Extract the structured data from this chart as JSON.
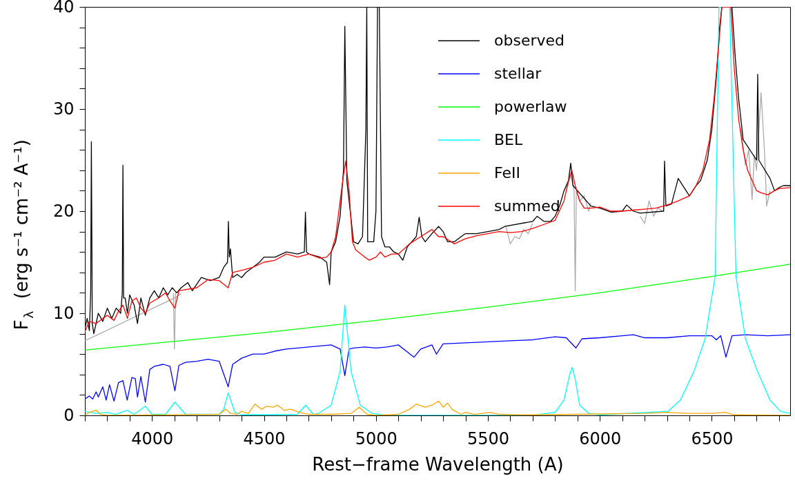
{
  "chart_data": {
    "type": "line",
    "xlabel": "Rest−frame Wavelength (A)",
    "ylabel": "F$_{λ}$ (erg s⁻¹ cm⁻² A⁻¹)",
    "xlim": [
      3700,
      6850
    ],
    "ylim": [
      0,
      40
    ],
    "xticks": [
      {
        "value": 3700,
        "label": null
      },
      {
        "value": 3800,
        "label": null
      },
      {
        "value": 3900,
        "label": null
      },
      4000,
      {
        "value": 4100,
        "label": null
      },
      {
        "value": 4200,
        "label": null
      },
      {
        "value": 4300,
        "label": null
      },
      {
        "value": 4400,
        "label": null
      },
      4500,
      {
        "value": 4600,
        "label": null
      },
      {
        "value": 4700,
        "label": null
      },
      {
        "value": 4800,
        "label": null
      },
      {
        "value": 4900,
        "label": null
      },
      5000,
      {
        "value": 5100,
        "label": null
      },
      {
        "value": 5200,
        "label": null
      },
      {
        "value": 5300,
        "label": null
      },
      {
        "value": 5400,
        "label": null
      },
      5500,
      {
        "value": 5600,
        "label": null
      },
      {
        "value": 5700,
        "label": null
      },
      {
        "value": 5800,
        "label": null
      },
      {
        "value": 5900,
        "label": null
      },
      6000,
      {
        "value": 6100,
        "label": null
      },
      {
        "value": 6200,
        "label": null
      },
      {
        "value": 6300,
        "label": null
      },
      {
        "value": 6400,
        "label": null
      },
      6500,
      {
        "value": 6600,
        "label": null
      },
      {
        "value": 6700,
        "label": null
      },
      {
        "value": 6800,
        "label": null
      }
    ],
    "yticks": [
      0,
      {
        "value": 2,
        "label": null
      },
      {
        "value": 4,
        "label": null
      },
      {
        "value": 6,
        "label": null
      },
      {
        "value": 8,
        "label": null
      },
      10,
      {
        "value": 12,
        "label": null
      },
      {
        "value": 14,
        "label": null
      },
      {
        "value": 16,
        "label": null
      },
      {
        "value": 18,
        "label": null
      },
      20,
      {
        "value": 22,
        "label": null
      },
      {
        "value": 24,
        "label": null
      },
      {
        "value": 26,
        "label": null
      },
      {
        "value": 28,
        "label": null
      },
      30,
      {
        "value": 32,
        "label": null
      },
      {
        "value": 34,
        "label": null
      },
      {
        "value": 36,
        "label": null
      },
      {
        "value": 38,
        "label": null
      },
      40
    ],
    "grid": false,
    "legend": "top",
    "line_style": "solid",
    "marker": "none",
    "series": [
      {
        "color": "#aaaaaa",
        "x": [
          3700,
          4100,
          4130
        ],
        "values": [
          7.3,
          11.5,
          11.9
        ]
      },
      {
        "color": "#aaaaaa",
        "x": [
          4095,
          4100,
          4105
        ],
        "values": [
          12.0,
          6.5,
          12.0
        ]
      },
      {
        "color": "#aaaaaa",
        "x": [
          5580,
          5600,
          5620,
          5640,
          5660,
          5680,
          5700
        ],
        "values": [
          18.5,
          16.8,
          17.5,
          17.3,
          18.2,
          17.8,
          18.8
        ]
      },
      {
        "color": "#aaaaaa",
        "x": [
          5850,
          5870,
          5885,
          5890,
          5895,
          5910,
          5930,
          5950,
          5960
        ],
        "values": [
          22.0,
          23.5,
          22.0,
          12.2,
          22.0,
          21.0,
          21.5,
          20.0,
          20.8
        ]
      },
      {
        "color": "#aaaaaa",
        "x": [
          6180,
          6200,
          6220,
          6240,
          6260,
          6280
        ],
        "values": [
          19.5,
          18.8,
          21.0,
          19.5,
          20.3,
          20.0
        ]
      },
      {
        "color": "#aaaaaa",
        "x": [
          6630,
          6650,
          6665,
          6680,
          6690,
          6700,
          6720,
          6735,
          6745,
          6760
        ],
        "values": [
          28.0,
          24.5,
          26.0,
          21.1,
          25.5,
          24.0,
          31.6,
          26.0,
          20.5,
          22.0
        ]
      },
      {
        "name": "observed",
        "color": "#000000",
        "x": [
          3700,
          3710,
          3720,
          3726,
          3729,
          3733,
          3740,
          3760,
          3780,
          3800,
          3820,
          3840,
          3860,
          3867,
          3870,
          3873,
          3880,
          3890,
          3900,
          3920,
          3935,
          3950,
          3970,
          3990,
          4010,
          4030,
          4050,
          4070,
          4090,
          4110,
          4130,
          4160,
          4180,
          4220,
          4260,
          4300,
          4320,
          4337,
          4341,
          4345,
          4350,
          4360,
          4380,
          4400,
          4420,
          4450,
          4480,
          4500,
          4550,
          4600,
          4650,
          4680,
          4685,
          4690,
          4700,
          4750,
          4780,
          4793,
          4800,
          4820,
          4840,
          4855,
          4861,
          4870,
          4880,
          4900,
          4920,
          4940,
          4955,
          4959,
          4963,
          4990,
          5000,
          5007,
          5015,
          5025,
          5040,
          5060,
          5080,
          5100,
          5120,
          5140,
          5160,
          5180,
          5193,
          5205,
          5220,
          5250,
          5280,
          5300,
          5320,
          5350,
          5380,
          5400,
          5450,
          5500,
          5550,
          5575,
          5700,
          5720,
          5750,
          5780,
          5800,
          5820,
          5840,
          5860,
          5870,
          5880,
          5960,
          6000,
          6050,
          6100,
          6120,
          6150,
          6180,
          6285,
          6289,
          6295,
          6320,
          6350,
          6400,
          6430,
          6450,
          6480,
          6500,
          6520,
          6535,
          6545,
          6590,
          6605,
          6620,
          6640,
          6700,
          6705,
          6710,
          6760,
          6780,
          6800,
          6820,
          6850
        ],
        "values": [
          8.5,
          9.5,
          8.3,
          12.0,
          26.8,
          9.0,
          8.0,
          10.0,
          9.2,
          10.5,
          9.5,
          10.5,
          10.0,
          12.0,
          24.5,
          11.5,
          11.5,
          10.0,
          11.8,
          10.8,
          9.0,
          11.5,
          9.8,
          11.5,
          12.2,
          11.5,
          12.5,
          11.8,
          12.5,
          12.0,
          12.5,
          13.0,
          12.2,
          13.5,
          13.2,
          13.5,
          14.5,
          15.0,
          19.0,
          15.5,
          16.3,
          13.5,
          13.8,
          13.5,
          14.0,
          14.5,
          15.0,
          15.5,
          15.5,
          16.0,
          15.8,
          16.0,
          19.9,
          16.0,
          15.8,
          15.5,
          15.0,
          12.8,
          16.0,
          17.0,
          19.5,
          24.0,
          38.1,
          23.0,
          21.0,
          17.0,
          16.8,
          17.5,
          28.0,
          40.0,
          17.0,
          17.0,
          20.0,
          40.0,
          40.0,
          17.5,
          16.5,
          16.5,
          16.0,
          15.8,
          15.2,
          16.5,
          17.0,
          17.5,
          19.4,
          17.5,
          17.0,
          17.8,
          18.5,
          18.0,
          17.0,
          17.0,
          17.5,
          17.8,
          17.8,
          18.0,
          18.2,
          18.5,
          19.0,
          19.5,
          19.0,
          19.0,
          19.5,
          20.5,
          22.0,
          23.0,
          24.7,
          22.5,
          20.5,
          20.3,
          19.9,
          20.0,
          20.6,
          20.0,
          19.8,
          20.0,
          24.9,
          20.5,
          20.7,
          23.2,
          21.5,
          22.5,
          23.0,
          25.0,
          28.0,
          33.0,
          38.0,
          40.0,
          40.0,
          35.0,
          31.0,
          27.0,
          25.0,
          33.4,
          25.0,
          23.2,
          22.0,
          22.3,
          22.5,
          22.5
        ]
      },
      {
        "name": "stellar",
        "color": "#0000ff",
        "x": [
          3700,
          3720,
          3735,
          3750,
          3760,
          3780,
          3795,
          3810,
          3830,
          3850,
          3870,
          3889,
          3910,
          3925,
          3935,
          3950,
          3970,
          3990,
          4010,
          4050,
          4080,
          4102,
          4120,
          4150,
          4200,
          4250,
          4300,
          4340,
          4360,
          4400,
          4450,
          4500,
          4550,
          4600,
          4650,
          4700,
          4750,
          4800,
          4840,
          4861,
          4880,
          4900,
          4950,
          5000,
          5050,
          5100,
          5170,
          5200,
          5250,
          5270,
          5300,
          5400,
          5500,
          5600,
          5700,
          5800,
          5850,
          5893,
          5920,
          6000,
          6100,
          6150,
          6200,
          6300,
          6400,
          6500,
          6520,
          6540,
          6563,
          6590,
          6650,
          6750,
          6850
        ],
        "values": [
          1.6,
          1.9,
          1.6,
          2.3,
          1.8,
          2.8,
          1.5,
          3.0,
          1.4,
          3.2,
          3.4,
          1.5,
          3.7,
          3.6,
          1.8,
          3.8,
          1.3,
          4.5,
          4.8,
          5.0,
          4.8,
          2.4,
          4.9,
          5.2,
          5.3,
          5.5,
          5.3,
          2.8,
          5.0,
          5.6,
          6.0,
          6.0,
          6.3,
          6.5,
          6.6,
          6.7,
          6.8,
          6.9,
          6.5,
          3.9,
          6.5,
          6.6,
          6.7,
          6.6,
          6.7,
          6.9,
          5.7,
          6.5,
          6.9,
          6.0,
          7.0,
          7.1,
          7.2,
          7.3,
          7.4,
          7.7,
          7.6,
          6.6,
          7.5,
          7.6,
          7.8,
          7.9,
          7.6,
          7.6,
          7.8,
          7.8,
          7.4,
          7.8,
          5.7,
          7.8,
          7.9,
          7.8,
          7.9
        ]
      },
      {
        "name": "powerlaw",
        "color": "#00ff00",
        "x": [
          3700,
          4500,
          5000,
          5500,
          6000,
          6500,
          6850
        ],
        "values": [
          6.4,
          8.1,
          9.3,
          10.6,
          12.0,
          13.6,
          14.8
        ]
      },
      {
        "name": "BEL",
        "color": "#00ffff",
        "x": [
          3700,
          3750,
          3800,
          3835,
          3850,
          3889,
          3920,
          3970,
          4000,
          4060,
          4102,
          4150,
          4300,
          4320,
          4340,
          4370,
          4400,
          4650,
          4686,
          4720,
          4743,
          4800,
          4840,
          4861,
          4889,
          4930,
          4982,
          5050,
          5700,
          5800,
          5840,
          5865,
          5877,
          5890,
          5910,
          5950,
          6000,
          6305,
          6360,
          6420,
          6470,
          6515,
          6532,
          6580,
          6608,
          6650,
          6704,
          6760,
          6807,
          6850
        ],
        "values": [
          0.4,
          0.2,
          0.3,
          0.1,
          0.2,
          0.5,
          0.1,
          0.9,
          0.1,
          0.1,
          1.3,
          0.1,
          0.1,
          0.6,
          2.2,
          0.3,
          0.05,
          0.1,
          1.0,
          0.1,
          0.2,
          1.0,
          4.3,
          10.8,
          4.3,
          1.0,
          0.2,
          0.0,
          0.0,
          0.3,
          1.5,
          4.0,
          4.7,
          3.5,
          1.0,
          0.2,
          0.05,
          0.4,
          1.5,
          4.3,
          7.5,
          13.6,
          40.0,
          40.0,
          13.6,
          7.5,
          4.3,
          1.5,
          0.4,
          0.2
        ]
      },
      {
        "name": "FeII",
        "color": "#ffa500",
        "x": [
          3700,
          3720,
          3750,
          3770,
          3800,
          4300,
          4330,
          4350,
          4380,
          4400,
          4430,
          4460,
          4490,
          4510,
          4540,
          4560,
          4590,
          4620,
          4660,
          4700,
          4800,
          4890,
          4925,
          4960,
          5000,
          5100,
          5150,
          5180,
          5220,
          5250,
          5280,
          5300,
          5320,
          5340,
          5380,
          5400,
          5440,
          5510,
          5550,
          5700,
          6200,
          6300,
          6400,
          6500,
          6560,
          6600,
          6850
        ],
        "values": [
          0.0,
          0.3,
          0.5,
          0.1,
          0.0,
          0.1,
          0.6,
          0.2,
          0.1,
          0.4,
          0.2,
          1.1,
          0.6,
          0.9,
          0.8,
          1.0,
          0.5,
          0.6,
          0.3,
          0.1,
          0.1,
          0.2,
          0.8,
          0.1,
          0.0,
          0.1,
          0.6,
          1.1,
          0.8,
          1.0,
          1.4,
          0.8,
          1.2,
          0.6,
          0.1,
          0.3,
          0.1,
          0.3,
          0.1,
          0.05,
          0.2,
          0.3,
          0.2,
          0.2,
          0.3,
          0.05,
          0.0
        ]
      },
      {
        "name": "summed",
        "color": "#ff0000",
        "x": [
          3700,
          3720,
          3750,
          3780,
          3800,
          3830,
          3850,
          3870,
          3890,
          3910,
          3930,
          3950,
          3970,
          3990,
          4030,
          4060,
          4080,
          4102,
          4120,
          4200,
          4250,
          4300,
          4340,
          4360,
          4400,
          4450,
          4500,
          4550,
          4600,
          4650,
          4700,
          4750,
          4780,
          4800,
          4820,
          4840,
          4855,
          4865,
          4880,
          4895,
          4910,
          4950,
          4970,
          5000,
          5020,
          5040,
          5070,
          5100,
          5150,
          5200,
          5250,
          5280,
          5300,
          5350,
          5400,
          5450,
          5500,
          5550,
          5600,
          5650,
          5700,
          5750,
          5800,
          5840,
          5860,
          5875,
          5890,
          5910,
          5930,
          5960,
          6000,
          6050,
          6100,
          6150,
          6200,
          6250,
          6300,
          6350,
          6400,
          6430,
          6460,
          6490,
          6510,
          6530,
          6545,
          6585,
          6600,
          6620,
          6640,
          6660,
          6680,
          6700,
          6720,
          6750,
          6780,
          6800,
          6850
        ],
        "values": [
          8.2,
          9.2,
          9.0,
          9.5,
          9.8,
          9.3,
          10.2,
          10.8,
          9.5,
          11.2,
          11.5,
          10.5,
          10.0,
          11.0,
          11.5,
          12.0,
          11.2,
          10.5,
          12.2,
          12.5,
          13.3,
          13.2,
          12.5,
          14.0,
          14.2,
          14.5,
          15.0,
          15.2,
          15.8,
          15.5,
          15.8,
          15.4,
          15.5,
          16.0,
          17.5,
          21.0,
          23.5,
          24.9,
          22.0,
          17.0,
          16.2,
          15.5,
          15.2,
          15.5,
          16.0,
          15.5,
          15.8,
          15.8,
          16.8,
          17.5,
          18.2,
          17.5,
          17.5,
          16.8,
          17.3,
          17.6,
          17.8,
          18.0,
          17.9,
          18.0,
          18.3,
          18.7,
          19.1,
          21.0,
          23.0,
          24.0,
          22.5,
          21.0,
          20.3,
          20.3,
          20.4,
          20.0,
          20.0,
          20.1,
          20.2,
          20.3,
          20.6,
          21.0,
          21.5,
          22.5,
          24.0,
          27.0,
          31.0,
          36.0,
          40.0,
          40.0,
          34.0,
          29.0,
          26.0,
          24.0,
          23.0,
          22.0,
          21.8,
          21.6,
          22.0,
          22.2,
          22.3
        ]
      }
    ]
  }
}
